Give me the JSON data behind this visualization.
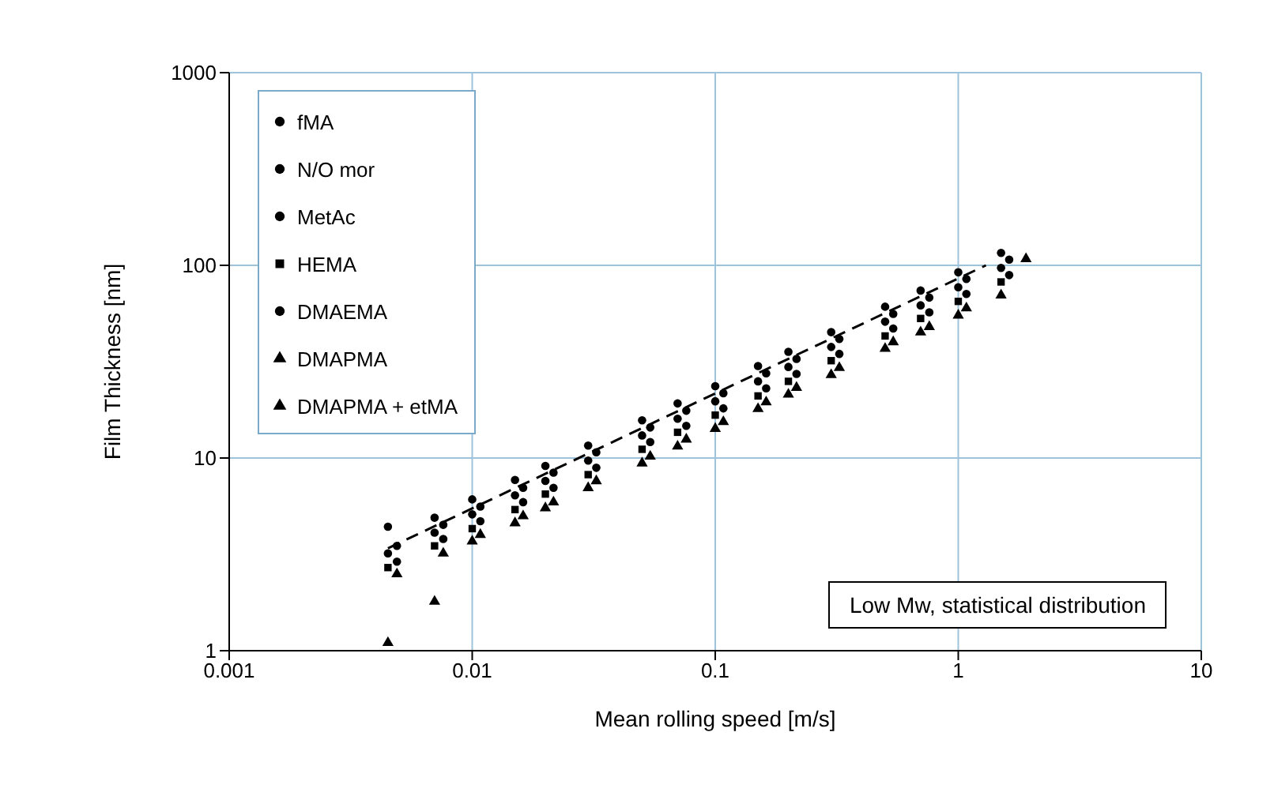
{
  "chart_data": {
    "type": "scatter",
    "xlabel": "Mean rolling speed [m/s]",
    "ylabel": "Film Thickness [nm]",
    "x": [
      0.0045,
      0.007,
      0.01,
      0.015,
      0.02,
      0.03,
      0.05,
      0.07,
      0.1,
      0.15,
      0.2,
      0.3,
      0.5,
      0.7,
      1,
      1.5
    ],
    "series": [
      {
        "name": "fMA",
        "color": "#000000",
        "marker": "circle",
        "values": [
          4.4,
          4.9,
          6.1,
          7.7,
          9.1,
          11.6,
          15.7,
          19.2,
          23.6,
          30,
          35.6,
          45,
          61,
          74,
          92,
          116
        ]
      },
      {
        "name": "N/O mor",
        "color": "#000000",
        "marker": "circle",
        "values": [
          3.2,
          4.1,
          5.1,
          6.4,
          7.6,
          9.7,
          13.1,
          16,
          19.7,
          25,
          29.7,
          37.7,
          51,
          62,
          77,
          97
        ]
      },
      {
        "name": "MetAc",
        "color": "#000000",
        "marker": "circle",
        "x": [
          0.0049,
          0.0076,
          0.0108,
          0.0162,
          0.0216,
          0.0324,
          0.054,
          0.076,
          0.108,
          0.162,
          0.216,
          0.324,
          0.54,
          0.76,
          1.08,
          1.62
        ],
        "values": [
          3.5,
          4.5,
          5.6,
          7.0,
          8.4,
          10.7,
          14.4,
          17.6,
          21.7,
          27.5,
          32.7,
          41.5,
          56,
          68,
          85,
          107
        ]
      },
      {
        "name": "HEMA",
        "color": "#000000",
        "marker": "square",
        "values": [
          2.7,
          3.5,
          4.3,
          5.4,
          6.5,
          8.2,
          11.1,
          13.6,
          16.7,
          21,
          25,
          32,
          43,
          53,
          65,
          82
        ]
      },
      {
        "name": "DMAEMA",
        "color": "#000000",
        "marker": "circle",
        "x": [
          0.0049,
          0.0076,
          0.0108,
          0.0162,
          0.0216,
          0.0324,
          0.054,
          0.076,
          0.108,
          0.162,
          0.216,
          0.324,
          0.54,
          0.76,
          1.08,
          1.62
        ],
        "values": [
          2.9,
          3.8,
          4.7,
          5.9,
          7.0,
          8.9,
          12.1,
          14.7,
          18.1,
          23,
          27.3,
          34.7,
          47,
          57,
          71,
          89
        ]
      },
      {
        "name": "DMAPMA",
        "color": "#000000",
        "marker": "triangle",
        "values": [
          1.1,
          1.8,
          3.7,
          4.6,
          5.5,
          7.0,
          9.4,
          11.5,
          14.2,
          18,
          21.4,
          27,
          37,
          45,
          55,
          70
        ]
      },
      {
        "name": "DMAPMA + etMA",
        "color": "#000000",
        "marker": "triangle",
        "x": [
          0.0049,
          0.0076,
          0.0108,
          0.0162,
          0.0216,
          0.0324,
          0.054,
          0.076,
          0.108,
          0.162,
          0.216,
          0.324,
          0.54,
          0.76,
          1.08,
          1.9
        ],
        "values": [
          2.5,
          3.2,
          4.0,
          5.0,
          5.9,
          7.6,
          10.2,
          12.5,
          15.4,
          19.5,
          23.2,
          29.4,
          40,
          48,
          60,
          108
        ]
      },
      {
        "type": "line",
        "color": "#000000",
        "line_style": "dashed",
        "marker": "none",
        "x": [
          0.0045,
          1.3
        ],
        "values": [
          3.4,
          100
        ]
      }
    ],
    "log": "xy",
    "xlim": [
      0.001,
      10
    ],
    "xticks": [
      0.001,
      0.01,
      0.1,
      1,
      10
    ],
    "ylim": [
      1,
      1000
    ],
    "yticks": [
      1,
      10,
      100,
      1000
    ],
    "grid": true,
    "legend": "top left",
    "annotations": [
      "Low Mw, statistical distribution"
    ]
  }
}
